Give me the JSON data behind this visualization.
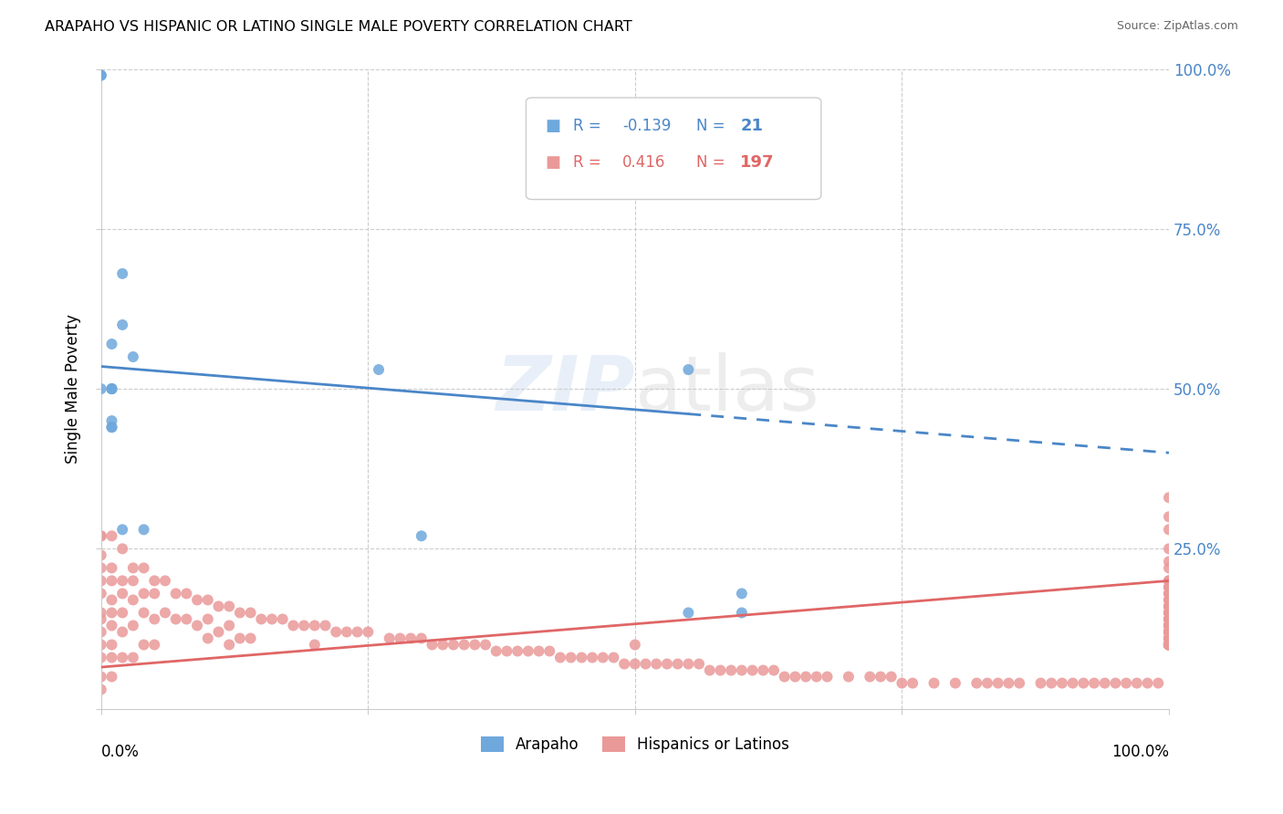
{
  "title": "ARAPAHO VS HISPANIC OR LATINO SINGLE MALE POVERTY CORRELATION CHART",
  "source": "Source: ZipAtlas.com",
  "ylabel": "Single Male Poverty",
  "legend_blue_R": "-0.139",
  "legend_blue_N": "21",
  "legend_pink_R": "0.416",
  "legend_pink_N": "197",
  "blue_color": "#6fa8dc",
  "pink_color": "#ea9999",
  "blue_line_color": "#4a86c8",
  "pink_line_color": "#e06666",
  "background_color": "#ffffff",
  "blue_scatter_x": [
    0.02,
    0.02,
    0.01,
    0.01,
    0.01,
    0.01,
    0.01,
    0.01,
    0.01,
    0.02,
    0.04,
    0.0,
    0.0,
    0.0,
    0.03,
    0.26,
    0.3,
    0.55,
    0.6,
    0.6,
    0.55
  ],
  "blue_scatter_y": [
    0.68,
    0.6,
    0.57,
    0.5,
    0.5,
    0.5,
    0.45,
    0.44,
    0.44,
    0.28,
    0.28,
    0.5,
    0.99,
    0.99,
    0.55,
    0.53,
    0.27,
    0.53,
    0.18,
    0.15,
    0.15
  ],
  "pink_scatter_x": [
    0.0,
    0.0,
    0.0,
    0.0,
    0.0,
    0.0,
    0.0,
    0.0,
    0.0,
    0.0,
    0.0,
    0.0,
    0.0,
    0.01,
    0.01,
    0.01,
    0.01,
    0.01,
    0.01,
    0.01,
    0.01,
    0.01,
    0.02,
    0.02,
    0.02,
    0.02,
    0.02,
    0.02,
    0.03,
    0.03,
    0.03,
    0.03,
    0.03,
    0.04,
    0.04,
    0.04,
    0.04,
    0.05,
    0.05,
    0.05,
    0.05,
    0.06,
    0.06,
    0.07,
    0.07,
    0.08,
    0.08,
    0.09,
    0.09,
    0.1,
    0.1,
    0.1,
    0.11,
    0.11,
    0.12,
    0.12,
    0.12,
    0.13,
    0.13,
    0.14,
    0.14,
    0.15,
    0.16,
    0.17,
    0.18,
    0.19,
    0.2,
    0.2,
    0.21,
    0.22,
    0.23,
    0.24,
    0.25,
    0.27,
    0.28,
    0.29,
    0.3,
    0.31,
    0.32,
    0.33,
    0.34,
    0.35,
    0.36,
    0.37,
    0.38,
    0.39,
    0.4,
    0.41,
    0.42,
    0.43,
    0.44,
    0.45,
    0.46,
    0.47,
    0.48,
    0.49,
    0.5,
    0.5,
    0.51,
    0.52,
    0.53,
    0.54,
    0.55,
    0.56,
    0.57,
    0.58,
    0.59,
    0.6,
    0.61,
    0.62,
    0.63,
    0.64,
    0.65,
    0.66,
    0.67,
    0.68,
    0.7,
    0.72,
    0.73,
    0.74,
    0.75,
    0.76,
    0.78,
    0.8,
    0.82,
    0.83,
    0.84,
    0.85,
    0.86,
    0.88,
    0.89,
    0.9,
    0.91,
    0.92,
    0.93,
    0.94,
    0.95,
    0.96,
    0.97,
    0.98,
    0.99,
    1.0,
    1.0,
    1.0,
    1.0,
    1.0,
    1.0,
    1.0,
    1.0,
    1.0,
    1.0,
    1.0,
    1.0,
    1.0,
    1.0,
    1.0,
    1.0,
    1.0,
    1.0,
    1.0,
    1.0,
    1.0,
    1.0,
    1.0,
    1.0,
    1.0,
    1.0,
    1.0,
    1.0,
    1.0,
    1.0,
    1.0,
    1.0,
    1.0,
    1.0,
    1.0,
    1.0,
    1.0,
    1.0,
    1.0,
    1.0,
    1.0,
    1.0,
    1.0,
    1.0,
    1.0,
    1.0,
    1.0,
    1.0,
    1.0,
    1.0,
    1.0,
    1.0
  ],
  "pink_scatter_y": [
    0.27,
    0.24,
    0.22,
    0.2,
    0.18,
    0.15,
    0.14,
    0.12,
    0.1,
    0.08,
    0.05,
    0.03,
    0.27,
    0.22,
    0.2,
    0.17,
    0.15,
    0.13,
    0.1,
    0.08,
    0.05,
    0.27,
    0.25,
    0.2,
    0.18,
    0.15,
    0.12,
    0.08,
    0.22,
    0.2,
    0.17,
    0.13,
    0.08,
    0.22,
    0.18,
    0.15,
    0.1,
    0.2,
    0.18,
    0.14,
    0.1,
    0.2,
    0.15,
    0.18,
    0.14,
    0.18,
    0.14,
    0.17,
    0.13,
    0.17,
    0.14,
    0.11,
    0.16,
    0.12,
    0.16,
    0.13,
    0.1,
    0.15,
    0.11,
    0.15,
    0.11,
    0.14,
    0.14,
    0.14,
    0.13,
    0.13,
    0.13,
    0.1,
    0.13,
    0.12,
    0.12,
    0.12,
    0.12,
    0.11,
    0.11,
    0.11,
    0.11,
    0.1,
    0.1,
    0.1,
    0.1,
    0.1,
    0.1,
    0.09,
    0.09,
    0.09,
    0.09,
    0.09,
    0.09,
    0.08,
    0.08,
    0.08,
    0.08,
    0.08,
    0.08,
    0.07,
    0.07,
    0.1,
    0.07,
    0.07,
    0.07,
    0.07,
    0.07,
    0.07,
    0.06,
    0.06,
    0.06,
    0.06,
    0.06,
    0.06,
    0.06,
    0.05,
    0.05,
    0.05,
    0.05,
    0.05,
    0.05,
    0.05,
    0.05,
    0.05,
    0.04,
    0.04,
    0.04,
    0.04,
    0.04,
    0.04,
    0.04,
    0.04,
    0.04,
    0.04,
    0.04,
    0.04,
    0.04,
    0.04,
    0.04,
    0.04,
    0.04,
    0.04,
    0.04,
    0.04,
    0.04,
    0.33,
    0.3,
    0.28,
    0.25,
    0.23,
    0.22,
    0.2,
    0.2,
    0.19,
    0.19,
    0.18,
    0.18,
    0.17,
    0.17,
    0.16,
    0.16,
    0.16,
    0.15,
    0.15,
    0.15,
    0.14,
    0.14,
    0.14,
    0.13,
    0.13,
    0.13,
    0.13,
    0.12,
    0.12,
    0.12,
    0.12,
    0.12,
    0.11,
    0.11,
    0.11,
    0.11,
    0.1,
    0.1,
    0.1,
    0.1,
    0.1,
    0.1,
    0.1,
    0.1,
    0.1,
    0.1,
    0.1,
    0.1,
    0.1,
    0.1,
    0.1,
    0.1
  ],
  "blue_trend_x0": 0.0,
  "blue_trend_y0": 0.535,
  "blue_trend_x1": 1.0,
  "blue_trend_y1": 0.4,
  "blue_trend_dashed_start": 0.55,
  "pink_trend_x0": 0.0,
  "pink_trend_y0": 0.065,
  "pink_trend_x1": 1.0,
  "pink_trend_y1": 0.2,
  "xlim": [
    0.0,
    1.0
  ],
  "ylim": [
    0.0,
    1.0
  ]
}
